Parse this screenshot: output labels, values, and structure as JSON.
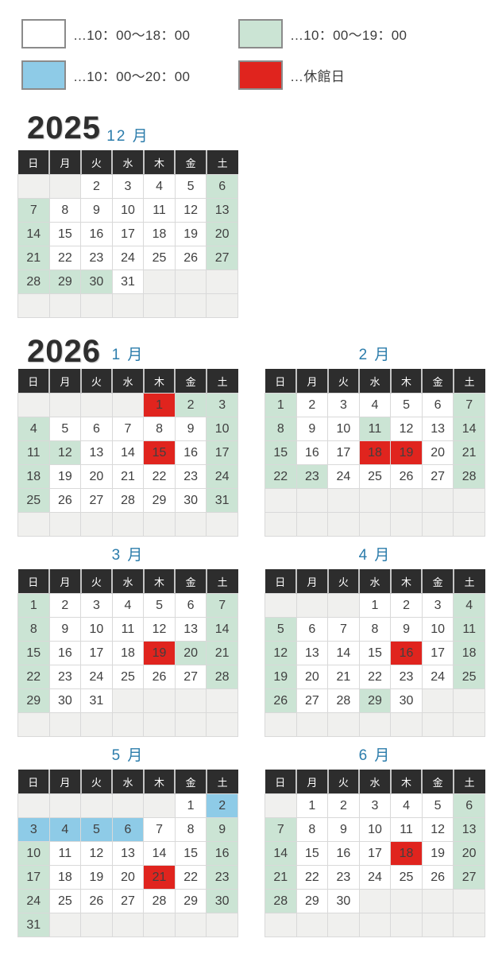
{
  "legend": {
    "items": [
      {
        "key": "open-18",
        "label": "…10：00〜18：00",
        "color": "#ffffff"
      },
      {
        "key": "open-19",
        "label": "…10：00〜19：00",
        "color": "#cbe4d4"
      },
      {
        "key": "open-20",
        "label": "…10：00〜20：00",
        "color": "#8ecbe7"
      },
      {
        "key": "closed",
        "label": "…休館日",
        "color": "#e0241e"
      }
    ]
  },
  "palette": {
    "w": "#ffffff",
    "g": "#cbe4d4",
    "b": "#8ecbe7",
    "r": "#e0241e"
  },
  "palette_legend": {
    "w": "open 10:00-18:00",
    "g": "open 10:00-19:00",
    "b": "open 10:00-20:00",
    "r": "closed day"
  },
  "weekday_headers": [
    "日",
    "月",
    "火",
    "水",
    "木",
    "金",
    "土"
  ],
  "sections": [
    {
      "year": "2025",
      "calendars": [
        {
          "label": "12 月",
          "weeks": [
            [
              "",
              "",
              "2|w",
              "3|w",
              "4|w",
              "5|w",
              "6|g"
            ],
            [
              "7|g",
              "8|w",
              "9|w",
              "10|w",
              "11|w",
              "12|w",
              "13|g"
            ],
            [
              "14|g",
              "15|w",
              "16|w",
              "17|w",
              "18|w",
              "19|w",
              "20|g"
            ],
            [
              "21|g",
              "22|w",
              "23|w",
              "24|w",
              "25|w",
              "26|w",
              "27|g"
            ],
            [
              "28|g",
              "29|g",
              "30|g",
              "31|w",
              "",
              "",
              ""
            ],
            [
              "",
              "",
              "",
              "",
              "",
              "",
              ""
            ]
          ]
        }
      ]
    },
    {
      "year": "2026",
      "calendars": [
        {
          "label": "1 月",
          "weeks": [
            [
              "",
              "",
              "",
              "",
              "1|r",
              "2|g",
              "3|g"
            ],
            [
              "4|g",
              "5|w",
              "6|w",
              "7|w",
              "8|w",
              "9|w",
              "10|g"
            ],
            [
              "11|g",
              "12|g",
              "13|w",
              "14|w",
              "15|r",
              "16|w",
              "17|g"
            ],
            [
              "18|g",
              "19|w",
              "20|w",
              "21|w",
              "22|w",
              "23|w",
              "24|g"
            ],
            [
              "25|g",
              "26|w",
              "27|w",
              "28|w",
              "29|w",
              "30|w",
              "31|g"
            ],
            [
              "",
              "",
              "",
              "",
              "",
              "",
              ""
            ]
          ]
        },
        {
          "label": "2 月",
          "weeks": [
            [
              "1|g",
              "2|w",
              "3|w",
              "4|w",
              "5|w",
              "6|w",
              "7|g"
            ],
            [
              "8|g",
              "9|w",
              "10|w",
              "11|g",
              "12|w",
              "13|w",
              "14|g"
            ],
            [
              "15|g",
              "16|w",
              "17|w",
              "18|r",
              "19|r",
              "20|w",
              "21|g"
            ],
            [
              "22|g",
              "23|g",
              "24|w",
              "25|w",
              "26|w",
              "27|w",
              "28|g"
            ],
            [
              "",
              "",
              "",
              "",
              "",
              "",
              ""
            ],
            [
              "",
              "",
              "",
              "",
              "",
              "",
              ""
            ]
          ]
        }
      ]
    },
    {
      "year": "",
      "calendars": [
        {
          "label": "3 月",
          "weeks": [
            [
              "1|g",
              "2|w",
              "3|w",
              "4|w",
              "5|w",
              "6|w",
              "7|g"
            ],
            [
              "8|g",
              "9|w",
              "10|w",
              "11|w",
              "12|w",
              "13|w",
              "14|g"
            ],
            [
              "15|g",
              "16|w",
              "17|w",
              "18|w",
              "19|r",
              "20|g",
              "21|g"
            ],
            [
              "22|g",
              "23|w",
              "24|w",
              "25|w",
              "26|w",
              "27|w",
              "28|g"
            ],
            [
              "29|g",
              "30|w",
              "31|w",
              "",
              "",
              "",
              ""
            ],
            [
              "",
              "",
              "",
              "",
              "",
              "",
              ""
            ]
          ]
        },
        {
          "label": "4 月",
          "weeks": [
            [
              "",
              "",
              "",
              "1|w",
              "2|w",
              "3|w",
              "4|g"
            ],
            [
              "5|g",
              "6|w",
              "7|w",
              "8|w",
              "9|w",
              "10|w",
              "11|g"
            ],
            [
              "12|g",
              "13|w",
              "14|w",
              "15|w",
              "16|r",
              "17|w",
              "18|g"
            ],
            [
              "19|g",
              "20|w",
              "21|w",
              "22|w",
              "23|w",
              "24|w",
              "25|g"
            ],
            [
              "26|g",
              "27|w",
              "28|w",
              "29|g",
              "30|w",
              "",
              ""
            ],
            [
              "",
              "",
              "",
              "",
              "",
              "",
              ""
            ]
          ]
        }
      ]
    },
    {
      "year": "",
      "calendars": [
        {
          "label": "5 月",
          "weeks": [
            [
              "",
              "",
              "",
              "",
              "",
              "1|w",
              "2|b"
            ],
            [
              "3|b",
              "4|b",
              "5|b",
              "6|b",
              "7|w",
              "8|w",
              "9|g"
            ],
            [
              "10|g",
              "11|w",
              "12|w",
              "13|w",
              "14|w",
              "15|w",
              "16|g"
            ],
            [
              "17|g",
              "18|w",
              "19|w",
              "20|w",
              "21|r",
              "22|w",
              "23|g"
            ],
            [
              "24|g",
              "25|w",
              "26|w",
              "27|w",
              "28|w",
              "29|w",
              "30|g"
            ],
            [
              "31|g",
              "",
              "",
              "",
              "",
              "",
              ""
            ]
          ]
        },
        {
          "label": "6 月",
          "weeks": [
            [
              "",
              "1|w",
              "2|w",
              "3|w",
              "4|w",
              "5|w",
              "6|g"
            ],
            [
              "7|g",
              "8|w",
              "9|w",
              "10|w",
              "11|w",
              "12|w",
              "13|g"
            ],
            [
              "14|g",
              "15|w",
              "16|w",
              "17|w",
              "18|r",
              "19|w",
              "20|g"
            ],
            [
              "21|g",
              "22|w",
              "23|w",
              "24|w",
              "25|w",
              "26|w",
              "27|g"
            ],
            [
              "28|g",
              "29|w",
              "30|w",
              "",
              "",
              "",
              ""
            ],
            [
              "",
              "",
              "",
              "",
              "",
              "",
              ""
            ]
          ]
        }
      ]
    }
  ]
}
